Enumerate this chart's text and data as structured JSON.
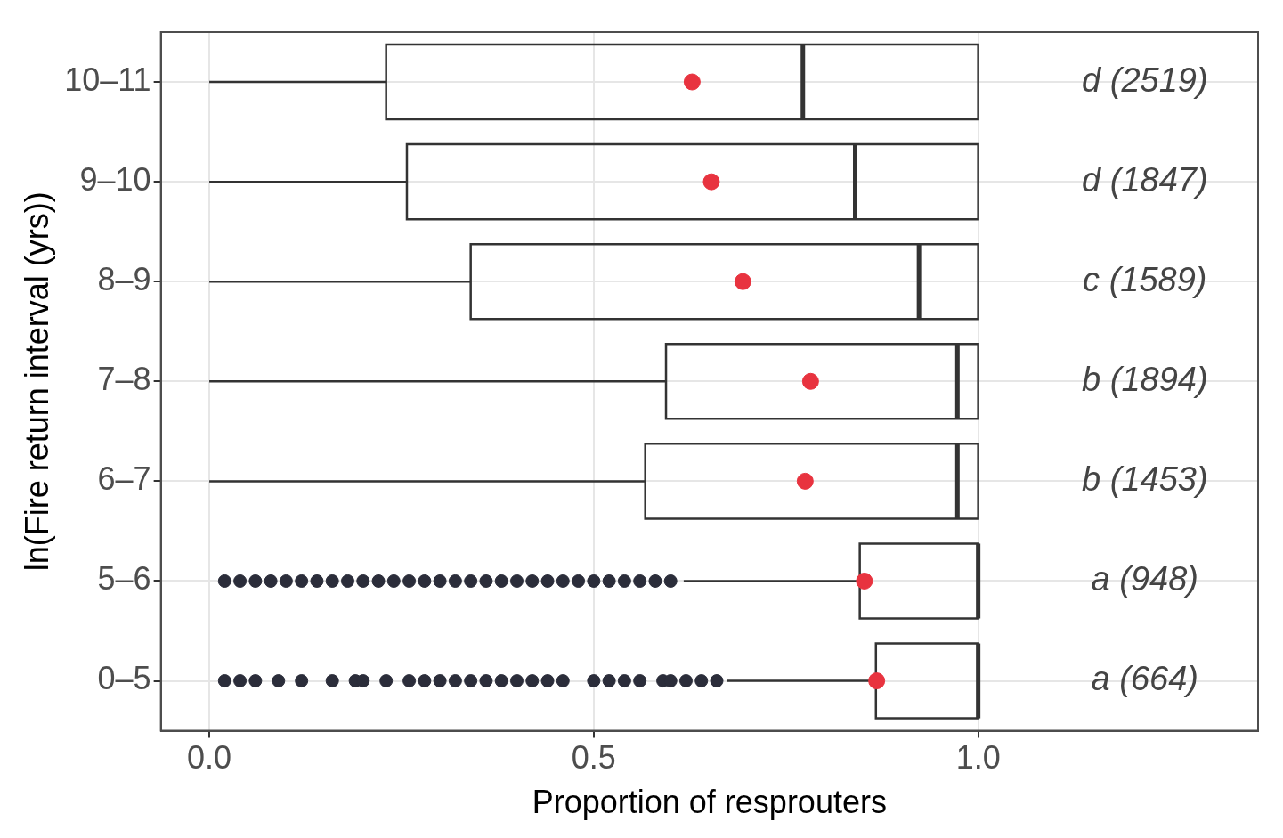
{
  "chart_data": {
    "type": "box",
    "orientation": "horizontal",
    "xlabel": "Proportion of resprouters",
    "ylabel": "ln(Fire return interval (yrs))",
    "categories": [
      "10–11",
      "9–10",
      "8–9",
      "7–8",
      "6–7",
      "5–6",
      "0–5"
    ],
    "xlim": [
      -0.063,
      1.364
    ],
    "xticks": [
      {
        "value": 0,
        "label": "0.0"
      },
      {
        "value": 0.5,
        "label": "0.5"
      },
      {
        "value": 1,
        "label": "1.0"
      }
    ],
    "grid": true,
    "legend": false,
    "series": [
      {
        "color": "#333333",
        "boxes": [
          {
            "low": 0,
            "q1": 0.23,
            "median": 0.772,
            "q3": 1,
            "high": 1,
            "mean": 0.628
          },
          {
            "low": 0,
            "q1": 0.257,
            "median": 0.84,
            "q3": 1,
            "high": 1,
            "mean": 0.653
          },
          {
            "low": 0,
            "q1": 0.34,
            "median": 0.923,
            "q3": 1,
            "high": 1,
            "mean": 0.694
          },
          {
            "low": 0,
            "q1": 0.594,
            "median": 0.973,
            "q3": 1,
            "high": 1,
            "mean": 0.782
          },
          {
            "low": 0,
            "q1": 0.567,
            "median": 0.973,
            "q3": 1,
            "high": 1,
            "mean": 0.775
          },
          {
            "low": 0.617,
            "q1": 0.846,
            "median": 1,
            "q3": 1,
            "high": 1,
            "mean": 0.852,
            "outliers": [
              0.02,
              0.04,
              0.06,
              0.08,
              0.1,
              0.12,
              0.14,
              0.16,
              0.18,
              0.2,
              0.22,
              0.24,
              0.26,
              0.28,
              0.3,
              0.32,
              0.34,
              0.36,
              0.38,
              0.4,
              0.42,
              0.44,
              0.46,
              0.48,
              0.5,
              0.52,
              0.54,
              0.56,
              0.58,
              0.6
            ]
          },
          {
            "low": 0.673,
            "q1": 0.867,
            "median": 1,
            "q3": 1,
            "high": 1,
            "mean": 0.868,
            "outliers": [
              0.02,
              0.04,
              0.06,
              0.09,
              0.12,
              0.16,
              0.19,
              0.2,
              0.23,
              0.26,
              0.28,
              0.3,
              0.32,
              0.34,
              0.36,
              0.38,
              0.4,
              0.42,
              0.44,
              0.46,
              0.5,
              0.52,
              0.54,
              0.56,
              0.59,
              0.6,
              0.62,
              0.64,
              0.66
            ]
          }
        ]
      }
    ],
    "annotations": [
      "d (2519)",
      "d (1847)",
      "c (1589)",
      "b (1894)",
      "b (1453)",
      "a (948)",
      "a (664)"
    ]
  }
}
